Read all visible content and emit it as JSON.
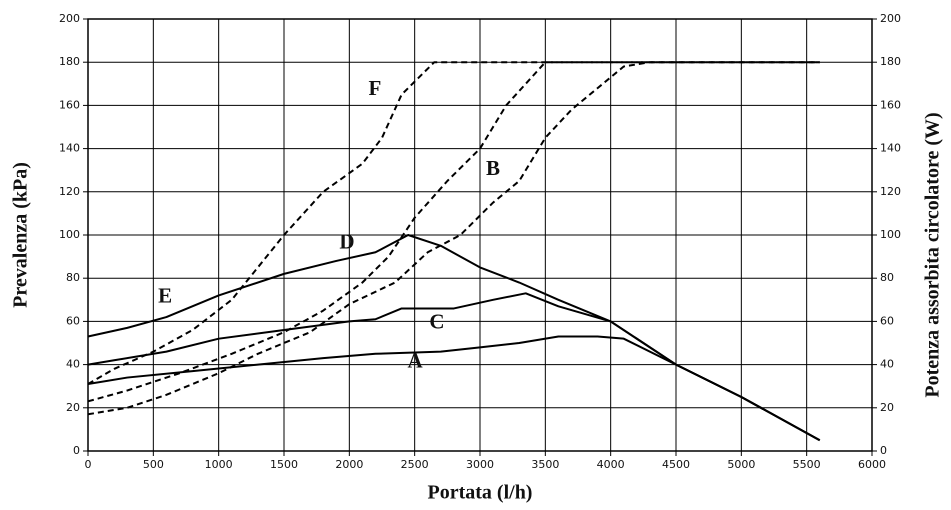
{
  "chart_data": {
    "type": "line",
    "xlabel": "Portata (l/h)",
    "ylabel": "Prevalenza (kPa)",
    "y2label": "Potenza assorbita  circolatore (W)",
    "xlim": [
      0,
      6000
    ],
    "xticks": [
      0,
      500,
      1000,
      1500,
      2000,
      2500,
      3000,
      3500,
      4000,
      4500,
      5000,
      5500,
      6000
    ],
    "ylim": [
      0,
      200
    ],
    "yticks": [
      0,
      20,
      40,
      60,
      80,
      100,
      120,
      140,
      160,
      180,
      200
    ],
    "y2lim": [
      0,
      200
    ],
    "y2ticks": [
      0,
      20,
      40,
      60,
      80,
      100,
      120,
      140,
      160,
      180,
      200
    ],
    "grid": true,
    "series": [
      {
        "name": "E",
        "color": "#000000",
        "style": "solid",
        "x": [
          0,
          300,
          600,
          1000,
          1500,
          1900,
          2200,
          2450,
          2700,
          3000,
          3300,
          3600,
          4000,
          4500,
          5000,
          5600
        ],
        "values": [
          53,
          57,
          62,
          72,
          82,
          88,
          92,
          100,
          95,
          85,
          78,
          70,
          60,
          40,
          25,
          5
        ]
      },
      {
        "name": "C",
        "color": "#000000",
        "style": "solid",
        "x": [
          0,
          200,
          600,
          1000,
          1500,
          2000,
          2200,
          2400,
          2800,
          3100,
          3350,
          3600,
          4000,
          4500,
          5000,
          5600
        ],
        "values": [
          40,
          42,
          46,
          52,
          56,
          60,
          61,
          66,
          66,
          70,
          73,
          67,
          60,
          40,
          25,
          5
        ]
      },
      {
        "name": "A",
        "color": "#000000",
        "style": "solid",
        "x": [
          0,
          300,
          800,
          1300,
          1800,
          2200,
          2700,
          3000,
          3300,
          3600,
          3900,
          4100,
          4500,
          5000,
          5600
        ],
        "values": [
          31,
          34,
          37,
          40,
          43,
          45,
          46,
          48,
          50,
          53,
          53,
          52,
          40,
          25,
          5
        ]
      },
      {
        "name": "F",
        "color": "#000000",
        "style": "dashed",
        "x": [
          0,
          200,
          500,
          800,
          1100,
          1300,
          1500,
          1800,
          2100,
          2250,
          2400,
          2650,
          5600
        ],
        "values": [
          31,
          38,
          46,
          56,
          70,
          85,
          100,
          120,
          133,
          145,
          165,
          180,
          180
        ]
      },
      {
        "name": "D",
        "color": "#000000",
        "style": "dashed",
        "x": [
          0,
          300,
          700,
          1100,
          1500,
          1800,
          2100,
          2300,
          2500,
          2750,
          3000,
          3200,
          3500,
          5600
        ],
        "values": [
          23,
          28,
          36,
          45,
          55,
          65,
          78,
          90,
          108,
          125,
          140,
          160,
          180,
          180
        ]
      },
      {
        "name": "B",
        "color": "#000000",
        "style": "dashed",
        "x": [
          0,
          300,
          600,
          1000,
          1300,
          1700,
          2000,
          2350,
          2600,
          2850,
          3100,
          3300,
          3500,
          3700,
          3900,
          4100,
          4300,
          5600
        ],
        "values": [
          17,
          20,
          26,
          36,
          45,
          55,
          68,
          78,
          92,
          100,
          115,
          125,
          145,
          158,
          168,
          178,
          180,
          180
        ]
      }
    ],
    "annotations": [
      {
        "text": "F",
        "x": 2196,
        "y": 167
      },
      {
        "text": "B",
        "x": 3100,
        "y": 130
      },
      {
        "text": "D",
        "x": 1982,
        "y": 96
      },
      {
        "text": "E",
        "x": 590,
        "y": 71
      },
      {
        "text": "C",
        "x": 2671,
        "y": 59
      },
      {
        "text": "A",
        "x": 2503,
        "y": 41
      }
    ]
  }
}
